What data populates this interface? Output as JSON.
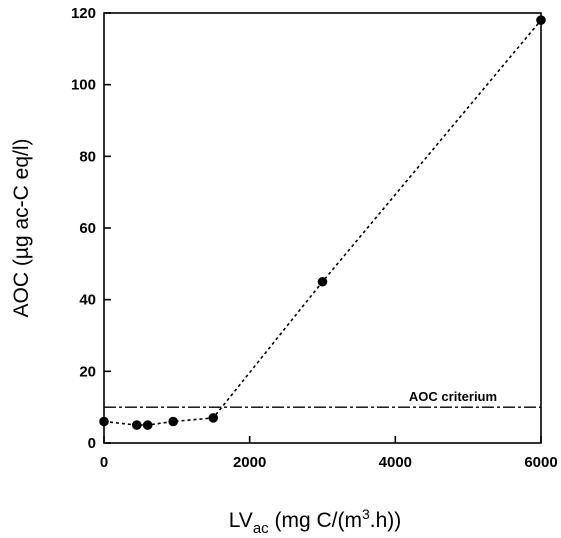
{
  "chart_data": {
    "type": "scatter",
    "title": "",
    "xlabel": {
      "prefix": "LV",
      "subscript": "ac",
      "rest": " (mg C/(m",
      "superscript": "3",
      "tail": ".h))"
    },
    "ylabel": "AOC (µg ac-C eq/l)",
    "xlim": [
      0,
      6000
    ],
    "ylim": [
      0,
      120
    ],
    "xticks": [
      0,
      2000,
      4000,
      6000
    ],
    "yticks": [
      0,
      20,
      40,
      60,
      80,
      100,
      120
    ],
    "grid": false,
    "series": [
      {
        "points": [
          {
            "x": 0,
            "y": 6
          },
          {
            "x": 450,
            "y": 5
          },
          {
            "x": 600,
            "y": 5
          },
          {
            "x": 950,
            "y": 6
          },
          {
            "x": 1500,
            "y": 7
          },
          {
            "x": 3000,
            "y": 45
          },
          {
            "x": 6000,
            "y": 118
          }
        ],
        "line_style": "dotted",
        "marker": "filled-circle"
      }
    ],
    "reference_line": {
      "y": 10,
      "label": "AOC criterium"
    }
  },
  "colors": {
    "ink": "#000000",
    "background": "#ffffff"
  }
}
